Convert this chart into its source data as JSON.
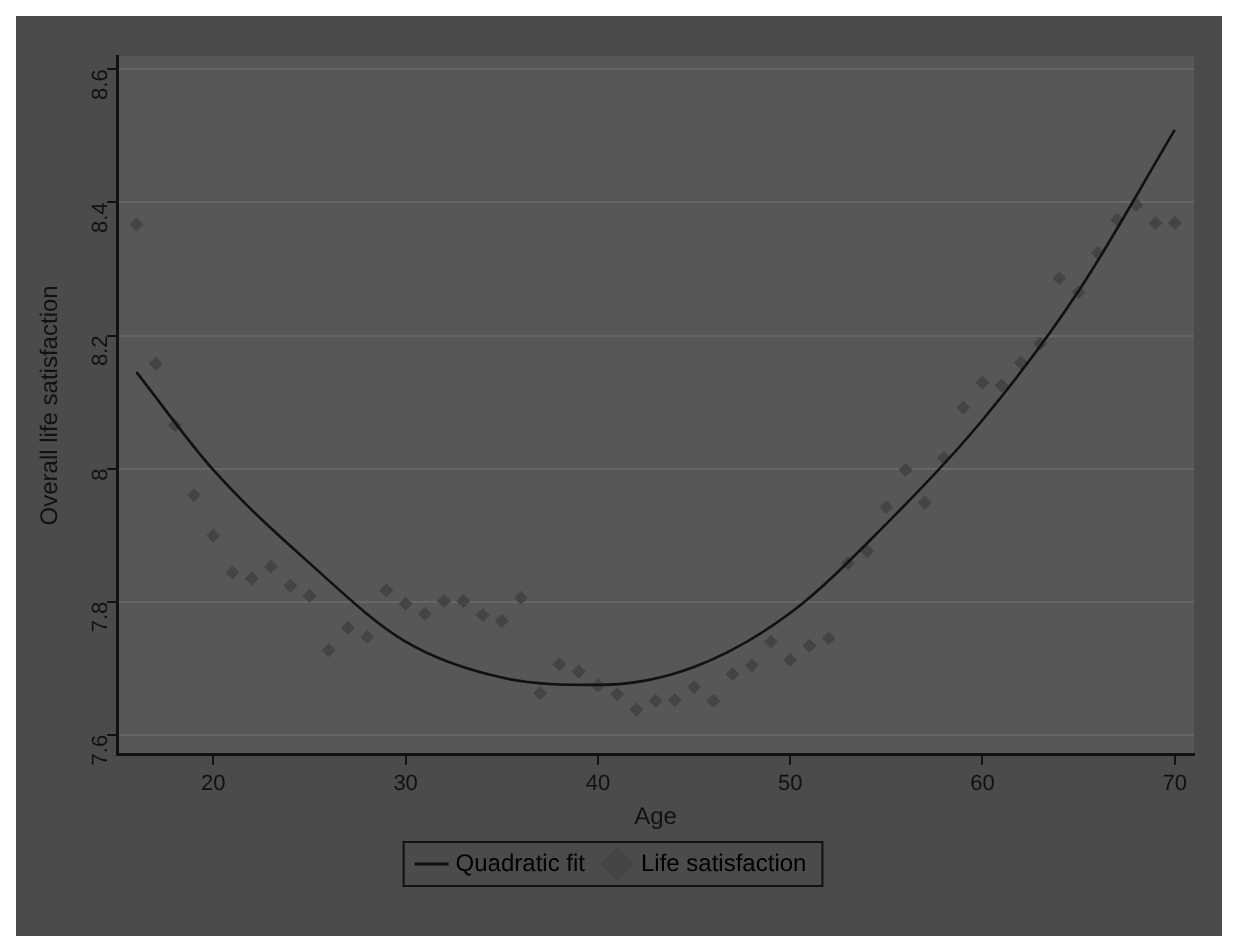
{
  "chart_data": {
    "type": "scatter",
    "xlabel": "Age",
    "ylabel": "Overall life satisfaction",
    "xlim": [
      15,
      71
    ],
    "ylim": [
      7.57,
      8.62
    ],
    "xticks": [
      20,
      30,
      40,
      50,
      60,
      70
    ],
    "yticks": [
      7.6,
      7.8,
      8,
      8.2,
      8.4,
      8.6
    ],
    "grid": "y",
    "legend": "bottom",
    "series": [
      {
        "name": "Quadratic fit",
        "type": "line",
        "color": "#111111",
        "marker": "none",
        "line_style": "solid",
        "x": [
          16,
          20,
          25,
          30,
          35,
          40,
          45,
          50,
          55,
          60,
          65,
          70
        ],
        "values": [
          8.145,
          7.998,
          7.858,
          7.74,
          7.686,
          7.675,
          7.702,
          7.783,
          7.917,
          8.073,
          8.267,
          8.509
        ]
      },
      {
        "name": "Life satisfaction",
        "type": "scatter",
        "color": "#444444",
        "marker": "diamond",
        "x": [
          16,
          17,
          18,
          19,
          20,
          21,
          22,
          23,
          24,
          25,
          26,
          27,
          28,
          29,
          30,
          31,
          32,
          33,
          34,
          35,
          36,
          37,
          38,
          39,
          40,
          41,
          42,
          43,
          44,
          45,
          46,
          47,
          48,
          49,
          50,
          51,
          52,
          53,
          54,
          55,
          56,
          57,
          58,
          59,
          60,
          61,
          62,
          63,
          64,
          65,
          66,
          67,
          68,
          69,
          70
        ],
        "values": [
          8.367,
          8.158,
          8.065,
          7.96,
          7.899,
          7.844,
          7.835,
          7.853,
          7.824,
          7.809,
          7.727,
          7.761,
          7.747,
          7.817,
          7.797,
          7.782,
          7.801,
          7.801,
          7.78,
          7.771,
          7.806,
          7.663,
          7.706,
          7.695,
          7.674,
          7.661,
          7.638,
          7.651,
          7.652,
          7.672,
          7.651,
          7.691,
          7.704,
          7.74,
          7.713,
          7.734,
          7.745,
          7.858,
          7.876,
          7.942,
          7.998,
          7.949,
          8.016,
          8.092,
          8.129,
          8.125,
          8.159,
          8.188,
          8.286,
          8.265,
          8.324,
          8.374,
          8.396,
          8.369,
          8.369
        ]
      }
    ]
  }
}
